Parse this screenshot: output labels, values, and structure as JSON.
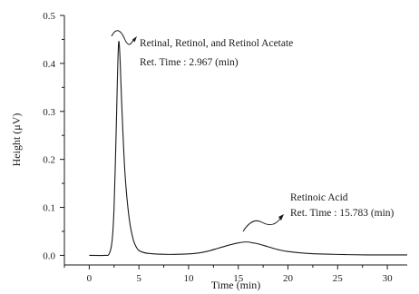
{
  "chart_data": {
    "type": "line",
    "xlabel": "Time (min)",
    "ylabel": "Height (μV)",
    "xlim": [
      -2.5,
      32
    ],
    "ylim": [
      -0.02,
      0.5
    ],
    "x_ticks": [
      0,
      5,
      10,
      15,
      20,
      25,
      30
    ],
    "y_ticks": [
      0.0,
      0.1,
      0.2,
      0.3,
      0.4,
      0.5
    ],
    "y_tick_labels": [
      "0.0",
      "0.1",
      "0.2",
      "0.3",
      "0.4",
      "0.5"
    ],
    "grid": false,
    "legend": "none",
    "series": [
      {
        "color": "#1a1a1a",
        "x": [
          0,
          1.5,
          2.0,
          2.3,
          2.5,
          2.7,
          2.85,
          2.967,
          3.1,
          3.3,
          3.6,
          4.0,
          4.4,
          4.8,
          5.2,
          6,
          8,
          10,
          11,
          12,
          13,
          14,
          15,
          15.783,
          16.5,
          17,
          18,
          19,
          20,
          22,
          24,
          26,
          28,
          30,
          32
        ],
        "y": [
          0.0,
          0.0,
          0.003,
          0.03,
          0.1,
          0.25,
          0.38,
          0.445,
          0.41,
          0.3,
          0.17,
          0.08,
          0.035,
          0.015,
          0.008,
          0.004,
          0.002,
          0.003,
          0.005,
          0.009,
          0.015,
          0.021,
          0.026,
          0.028,
          0.026,
          0.024,
          0.018,
          0.012,
          0.008,
          0.004,
          0.0025,
          0.0015,
          0.001,
          0.001,
          0.001
        ]
      }
    ],
    "annotations": [
      {
        "line1": "Retinal, Retinol, and Retinol Acetate",
        "line2": "Ret. Time : 2.967 (min)"
      },
      {
        "line1": "Retinoic Acid",
        "line2": "Ret. Time : 15.783 (min)"
      }
    ]
  }
}
